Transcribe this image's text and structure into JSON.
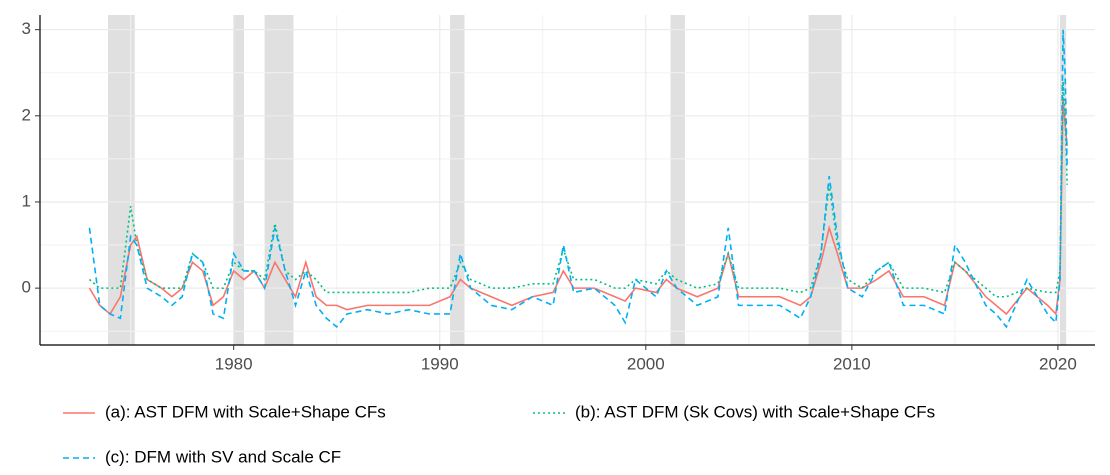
{
  "chart_data": {
    "type": "line",
    "x": [
      1973.0,
      1973.5,
      1974.0,
      1974.5,
      1975.0,
      1975.3,
      1975.8,
      1976.5,
      1977.0,
      1977.5,
      1978.0,
      1978.5,
      1979.0,
      1979.5,
      1980.0,
      1980.5,
      1981.0,
      1981.5,
      1982.0,
      1982.5,
      1983.0,
      1983.5,
      1984.0,
      1984.5,
      1985.0,
      1985.5,
      1986.5,
      1987.5,
      1988.5,
      1989.5,
      1990.5,
      1991.0,
      1991.5,
      1992.5,
      1993.5,
      1994.5,
      1995.5,
      1996.0,
      1996.5,
      1997.5,
      1998.5,
      1999.0,
      1999.5,
      2000.5,
      2001.0,
      2001.5,
      2002.5,
      2003.5,
      2004.0,
      2004.5,
      2005.5,
      2006.5,
      2007.5,
      2008.0,
      2008.5,
      2008.9,
      2009.3,
      2009.8,
      2010.5,
      2011.2,
      2011.8,
      2012.5,
      2013.5,
      2014.5,
      2015.0,
      2015.5,
      2016.5,
      2017.0,
      2017.5,
      2018.5,
      2019.5,
      2019.9,
      2020.1,
      2020.25,
      2020.35,
      2020.45
    ],
    "series": [
      {
        "name": "(a): AST DFM with Scale+Shape CFs",
        "color": "#F8766D",
        "dash": "none",
        "values": [
          0.0,
          -0.2,
          -0.3,
          -0.1,
          0.5,
          0.6,
          0.1,
          0.0,
          -0.1,
          0.0,
          0.3,
          0.2,
          -0.2,
          -0.1,
          0.2,
          0.1,
          0.2,
          0.0,
          0.3,
          0.1,
          -0.1,
          0.3,
          -0.1,
          -0.2,
          -0.2,
          -0.25,
          -0.2,
          -0.2,
          -0.2,
          -0.2,
          -0.1,
          0.1,
          0.0,
          -0.1,
          -0.2,
          -0.1,
          -0.05,
          0.2,
          0.0,
          0.0,
          -0.1,
          -0.15,
          0.0,
          -0.05,
          0.1,
          0.0,
          -0.1,
          0.0,
          0.4,
          -0.1,
          -0.1,
          -0.1,
          -0.2,
          -0.1,
          0.3,
          0.7,
          0.4,
          0.0,
          0.0,
          0.1,
          0.2,
          -0.1,
          -0.1,
          -0.2,
          0.3,
          0.2,
          -0.1,
          -0.2,
          -0.3,
          0.0,
          -0.2,
          -0.3,
          0.1,
          2.2,
          1.9,
          1.65
        ]
      },
      {
        "name": "(b): AST DFM (Sk Covs) with Scale+Shape CFs",
        "color": "#00BF7D",
        "dash": "2,3",
        "values": [
          0.1,
          0.0,
          0.0,
          0.0,
          0.95,
          0.5,
          0.1,
          0.0,
          0.0,
          0.0,
          0.4,
          0.3,
          0.0,
          0.0,
          0.3,
          0.2,
          0.2,
          0.1,
          0.75,
          0.2,
          0.1,
          0.2,
          0.1,
          -0.05,
          -0.05,
          -0.05,
          -0.05,
          -0.05,
          -0.05,
          0.0,
          0.0,
          0.3,
          0.1,
          0.0,
          0.0,
          0.05,
          0.05,
          0.45,
          0.1,
          0.1,
          0.0,
          0.0,
          0.1,
          0.05,
          0.2,
          0.1,
          0.0,
          0.05,
          0.4,
          0.0,
          0.0,
          0.0,
          -0.05,
          0.0,
          0.4,
          1.2,
          0.5,
          0.1,
          0.0,
          0.2,
          0.3,
          0.0,
          0.0,
          -0.05,
          0.3,
          0.2,
          0.0,
          -0.1,
          -0.1,
          0.0,
          -0.05,
          -0.05,
          0.2,
          2.4,
          2.0,
          1.2
        ]
      },
      {
        "name": "(c): DFM with SV and Scale CF",
        "color": "#00B0F6",
        "dash": "6,4",
        "values": [
          0.7,
          -0.2,
          -0.3,
          -0.35,
          0.6,
          0.5,
          0.0,
          -0.1,
          -0.2,
          -0.1,
          0.4,
          0.3,
          -0.3,
          -0.35,
          0.4,
          0.2,
          0.2,
          0.0,
          0.7,
          0.2,
          -0.2,
          0.2,
          -0.2,
          -0.35,
          -0.45,
          -0.3,
          -0.25,
          -0.3,
          -0.25,
          -0.3,
          -0.3,
          0.4,
          0.0,
          -0.2,
          -0.25,
          -0.1,
          -0.2,
          0.5,
          -0.05,
          0.0,
          -0.2,
          -0.4,
          0.1,
          -0.1,
          0.2,
          0.0,
          -0.2,
          -0.1,
          0.7,
          -0.2,
          -0.2,
          -0.2,
          -0.35,
          -0.1,
          0.4,
          1.3,
          0.6,
          0.0,
          -0.1,
          0.2,
          0.3,
          -0.2,
          -0.2,
          -0.3,
          0.5,
          0.3,
          -0.2,
          -0.3,
          -0.45,
          0.1,
          -0.3,
          -0.4,
          0.1,
          3.0,
          2.5,
          1.4
        ]
      }
    ],
    "shaded_periods": [
      [
        1973.9,
        1975.2
      ],
      [
        1980.0,
        1980.5
      ],
      [
        1981.5,
        1982.9
      ],
      [
        1990.5,
        1991.2
      ],
      [
        2001.2,
        2001.9
      ],
      [
        2007.9,
        2009.5
      ],
      [
        2020.1,
        2020.4
      ]
    ],
    "xlim": [
      1970.6,
      2021.8
    ],
    "ylim": [
      -0.66,
      3.17
    ],
    "xticks": [
      1980,
      1990,
      2000,
      2010,
      2020
    ],
    "yticks": [
      0,
      1,
      2,
      3
    ],
    "minor_xticks": [
      1975,
      1985,
      1995,
      2005,
      2015
    ],
    "minor_yticks": [
      -0.5,
      0.5,
      1.5,
      2.5
    ],
    "grid": true,
    "legend": "bottom"
  }
}
